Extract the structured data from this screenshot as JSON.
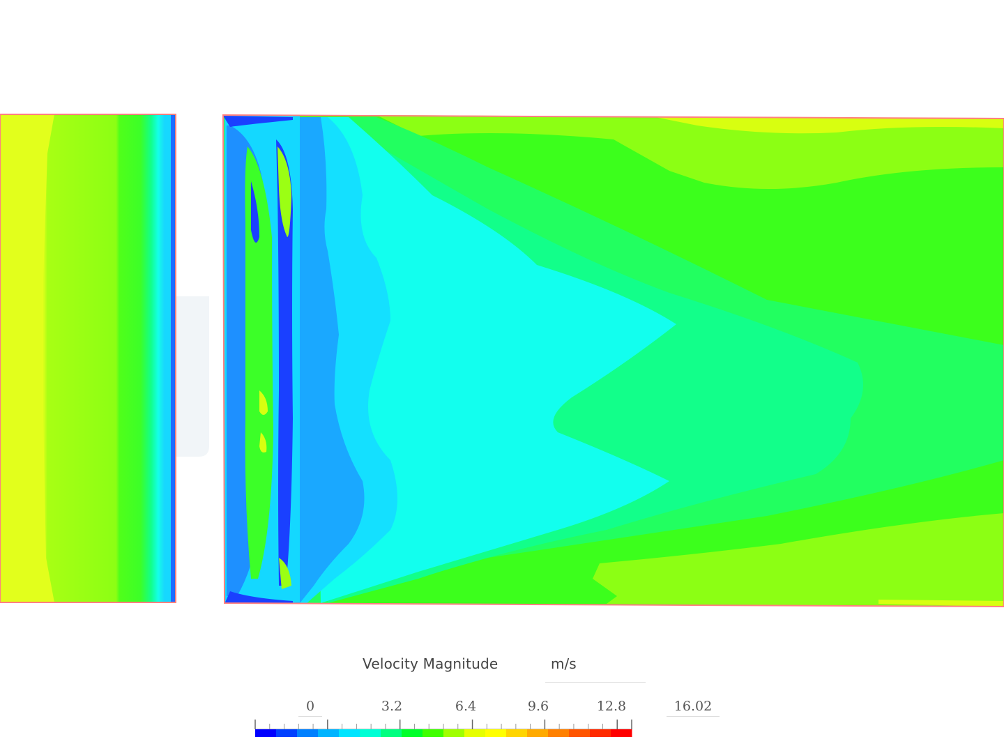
{
  "legend": {
    "title": "Velocity Magnitude",
    "unit": "m/s",
    "min": 0,
    "max": 16.02,
    "ticks": [
      "0",
      "3.2",
      "6.4",
      "9.6",
      "12.8"
    ],
    "max_label": "16.02",
    "colormap": [
      "#0000ff",
      "#0040ff",
      "#0080ff",
      "#00b4ff",
      "#00e5ff",
      "#00ffd5",
      "#00ff80",
      "#00ff2a",
      "#40ff00",
      "#a0ff00",
      "#e6ff00",
      "#ffff00",
      "#ffd500",
      "#ffaa00",
      "#ff8000",
      "#ff5500",
      "#ff2a00",
      "#ff0000"
    ]
  },
  "colors": {
    "domain_outline": "#ff8080",
    "inlet_yellow": "#e6ff1a",
    "bright_lime": "#9bff1a",
    "green": "#44ff1a",
    "seafoam": "#12ff88",
    "cyan": "#12fff2",
    "light_blue": "#12e6ff",
    "mid_blue": "#1aa0ff",
    "dark_blue": "#1a40ff"
  }
}
